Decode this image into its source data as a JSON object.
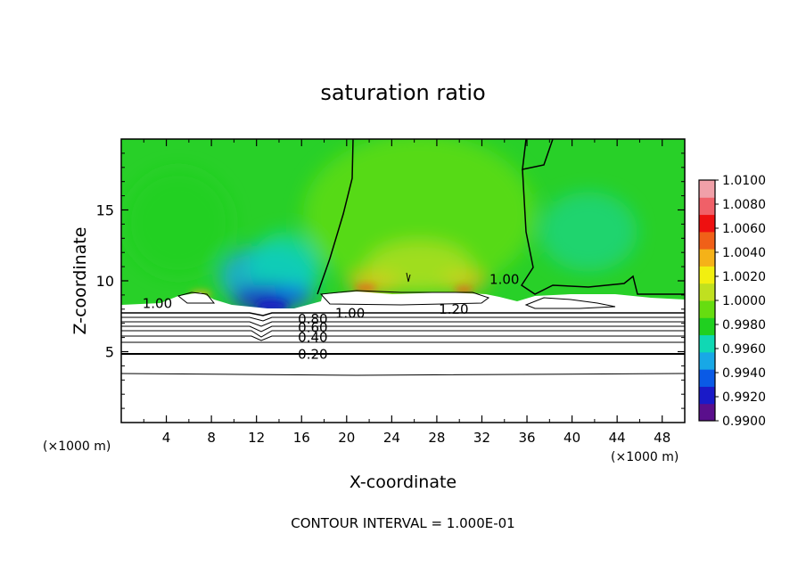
{
  "chart_data": {
    "type": "heatmap",
    "title": "saturation ratio",
    "xlabel": "X-coordinate",
    "ylabel": "Z-coordinate",
    "x_unit_left": "(×1000 m)",
    "x_unit_right": "(×1000 m)",
    "footer": "CONTOUR INTERVAL = 1.000E-01",
    "xlim": [
      0,
      50
    ],
    "ylim": [
      0,
      20
    ],
    "xticks": [
      4,
      8,
      12,
      16,
      20,
      24,
      28,
      32,
      36,
      40,
      44,
      48
    ],
    "yticks": [
      5,
      10,
      15
    ],
    "colorbar": {
      "levels": [
        "0.9900",
        "0.9920",
        "0.9940",
        "0.9960",
        "0.9980",
        "1.0000",
        "1.0020",
        "1.0040",
        "1.0060",
        "1.0080",
        "1.0100"
      ],
      "colors": [
        "#5a0f8c",
        "#1a1ac8",
        "#0a5ae6",
        "#18a8e6",
        "#10d8b4",
        "#20d020",
        "#66dd10",
        "#c0e020",
        "#f2ef10",
        "#f5b218",
        "#f06018",
        "#ee1010",
        "#f06068",
        "#f0a0a8"
      ]
    },
    "contour_labels": [
      {
        "text": "1.00",
        "x": 3.2,
        "y": 8.4
      },
      {
        "text": "1.00",
        "x": 34.0,
        "y": 10.1
      },
      {
        "text": "1.00",
        "x": 20.3,
        "y": 7.7
      },
      {
        "text": "1.20",
        "x": 29.5,
        "y": 8.0
      },
      {
        "text": "0.80",
        "x": 17.0,
        "y": 7.3
      },
      {
        "text": "0.60",
        "x": 17.0,
        "y": 6.7
      },
      {
        "text": "0.40",
        "x": 17.0,
        "y": 6.0
      },
      {
        "text": "0.20",
        "x": 17.0,
        "y": 4.8
      }
    ],
    "grid": false
  }
}
